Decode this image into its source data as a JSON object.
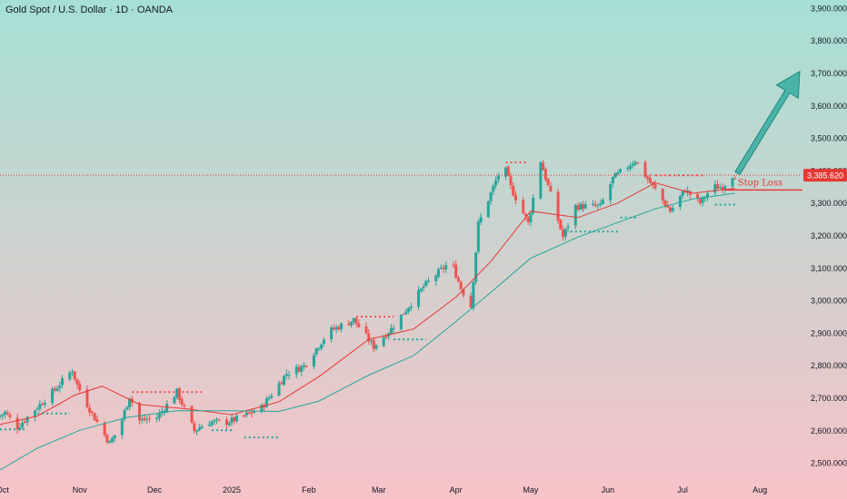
{
  "chart_data": {
    "type": "candlestick",
    "title": "Gold Spot / U.S. Dollar · 1D · OANDA",
    "y_axis": {
      "range": [
        2450,
        3925
      ],
      "ticks": [
        "3,900.000",
        "3,800.000",
        "3,700.000",
        "3,600.000",
        "3,500.000",
        "3,400.000",
        "3,300.000",
        "3,200.000",
        "3,100.000",
        "3,000.000",
        "2,900.000",
        "2,800.000",
        "2,700.000",
        "2,600.000",
        "2,500.000"
      ],
      "tick_values": [
        3900,
        3800,
        3700,
        3600,
        3500,
        3400,
        3300,
        3200,
        3100,
        3000,
        2900,
        2800,
        2700,
        2600,
        2500
      ],
      "last_price_label": "3,385.620",
      "last_price": 3385.62
    },
    "x_axis": {
      "range": [
        "2024-09-30",
        "2025-08-17"
      ],
      "labels": [
        "Oct",
        "Nov",
        "Dec",
        "2025",
        "Feb",
        "Mar",
        "Apr",
        "May",
        "Jun",
        "Jul",
        "Aug"
      ],
      "label_dates": [
        "2024-10-01",
        "2024-11-01",
        "2024-12-01",
        "2025-01-01",
        "2025-02-01",
        "2025-03-01",
        "2025-04-01",
        "2025-05-01",
        "2025-06-01",
        "2025-07-01",
        "2025-08-01"
      ]
    },
    "price_path": [
      [
        "2024-09-30",
        2640
      ],
      [
        "2024-10-03",
        2655
      ],
      [
        "2024-10-08",
        2610
      ],
      [
        "2024-10-10",
        2625
      ],
      [
        "2024-10-16",
        2672
      ],
      [
        "2024-10-23",
        2725
      ],
      [
        "2024-10-30",
        2785
      ],
      [
        "2024-11-01",
        2740
      ],
      [
        "2024-11-06",
        2665
      ],
      [
        "2024-11-14",
        2560
      ],
      [
        "2024-11-18",
        2610
      ],
      [
        "2024-11-22",
        2705
      ],
      [
        "2024-11-26",
        2630
      ],
      [
        "2024-12-03",
        2640
      ],
      [
        "2024-12-11",
        2718
      ],
      [
        "2024-12-18",
        2598
      ],
      [
        "2024-12-23",
        2625
      ],
      [
        "2024-12-31",
        2625
      ],
      [
        "2025-01-06",
        2640
      ],
      [
        "2025-01-14",
        2670
      ],
      [
        "2025-01-24",
        2775
      ],
      [
        "2025-01-31",
        2798
      ],
      [
        "2025-02-10",
        2905
      ],
      [
        "2025-02-20",
        2940
      ],
      [
        "2025-02-28",
        2858
      ],
      [
        "2025-03-07",
        2912
      ],
      [
        "2025-03-20",
        3042
      ],
      [
        "2025-03-31",
        3122
      ],
      [
        "2025-04-04",
        3038
      ],
      [
        "2025-04-08",
        2982
      ],
      [
        "2025-04-11",
        3235
      ],
      [
        "2025-04-21",
        3424
      ],
      [
        "2025-04-24",
        3348
      ],
      [
        "2025-05-01",
        3238
      ],
      [
        "2025-05-06",
        3430
      ],
      [
        "2025-05-15",
        3195
      ],
      [
        "2025-05-20",
        3290
      ],
      [
        "2025-05-30",
        3290
      ],
      [
        "2025-06-04",
        3375
      ],
      [
        "2025-06-13",
        3432
      ],
      [
        "2025-06-17",
        3385
      ],
      [
        "2025-06-27",
        3275
      ],
      [
        "2025-07-03",
        3340
      ],
      [
        "2025-07-09",
        3300
      ],
      [
        "2025-07-14",
        3350
      ],
      [
        "2025-07-18",
        3350
      ],
      [
        "2025-07-22",
        3385.62
      ]
    ],
    "series": [
      {
        "name": "",
        "color": "#e53935",
        "points": [
          [
            "2024-09-30",
            2618
          ],
          [
            "2024-10-15",
            2644
          ],
          [
            "2024-10-30",
            2708
          ],
          [
            "2024-11-10",
            2736
          ],
          [
            "2024-11-25",
            2680
          ],
          [
            "2024-12-15",
            2665
          ],
          [
            "2025-01-01",
            2648
          ],
          [
            "2025-01-20",
            2688
          ],
          [
            "2025-02-05",
            2765
          ],
          [
            "2025-02-25",
            2880
          ],
          [
            "2025-03-15",
            2912
          ],
          [
            "2025-04-01",
            3010
          ],
          [
            "2025-04-15",
            3120
          ],
          [
            "2025-05-01",
            3275
          ],
          [
            "2025-05-20",
            3255
          ],
          [
            "2025-06-05",
            3300
          ],
          [
            "2025-06-20",
            3362
          ],
          [
            "2025-07-05",
            3330
          ],
          [
            "2025-07-22",
            3345
          ]
        ]
      },
      {
        "name": "",
        "color": "#26a69a",
        "points": [
          [
            "2024-09-30",
            2478
          ],
          [
            "2024-10-15",
            2545
          ],
          [
            "2024-11-01",
            2600
          ],
          [
            "2024-11-20",
            2640
          ],
          [
            "2024-12-10",
            2660
          ],
          [
            "2025-01-01",
            2660
          ],
          [
            "2025-01-20",
            2658
          ],
          [
            "2025-02-05",
            2690
          ],
          [
            "2025-02-25",
            2770
          ],
          [
            "2025-03-15",
            2830
          ],
          [
            "2025-04-01",
            2935
          ],
          [
            "2025-04-15",
            3025
          ],
          [
            "2025-05-01",
            3130
          ],
          [
            "2025-05-20",
            3195
          ],
          [
            "2025-06-05",
            3240
          ],
          [
            "2025-06-20",
            3282
          ],
          [
            "2025-07-05",
            3312
          ],
          [
            "2025-07-22",
            3330
          ]
        ]
      }
    ],
    "support_markers": [
      {
        "from": "2024-09-30",
        "to": "2024-10-10",
        "value": 2603
      },
      {
        "from": "2024-10-15",
        "to": "2024-10-28",
        "value": 2652
      },
      {
        "from": "2024-11-22",
        "to": "2024-12-20",
        "value": 2718
      },
      {
        "from": "2024-12-24",
        "to": "2025-01-02",
        "value": 2600
      },
      {
        "from": "2025-01-06",
        "to": "2025-01-20",
        "value": 2578
      },
      {
        "from": "2025-02-20",
        "to": "2025-03-07",
        "value": 2950
      },
      {
        "from": "2025-03-07",
        "to": "2025-03-20",
        "value": 2880
      },
      {
        "from": "2025-04-21",
        "to": "2025-04-30",
        "value": 3425
      },
      {
        "from": "2025-05-17",
        "to": "2025-06-06",
        "value": 3212
      },
      {
        "from": "2025-06-06",
        "to": "2025-06-13",
        "value": 3255
      },
      {
        "from": "2025-06-20",
        "to": "2025-07-10",
        "value": 3385
      },
      {
        "from": "2025-07-14",
        "to": "2025-07-22",
        "value": 3295
      }
    ],
    "annotations": {
      "stop_loss": {
        "label": "Stop Loss",
        "value": 3340,
        "from": "2025-07-18",
        "to": "2025-08-18",
        "color": "#e53935"
      },
      "target_arrow": {
        "from": [
          "2025-07-23",
          3392
        ],
        "to": [
          "2025-08-17",
          3705
        ],
        "color": "#26a69a"
      }
    },
    "background": {
      "top": "#a6e0d5",
      "bottom": "#f7c3c8"
    },
    "up_color": "#26a69a",
    "down_color": "#ef5350"
  }
}
